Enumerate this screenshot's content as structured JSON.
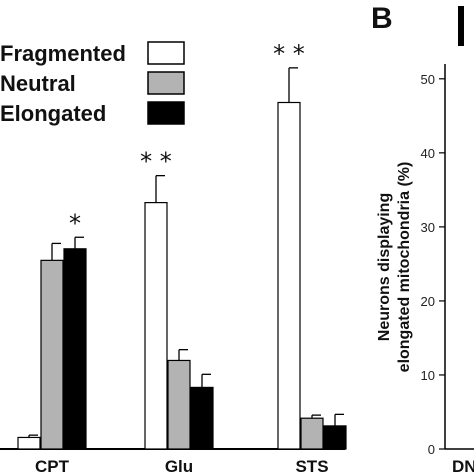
{
  "panel_b": {
    "label": "B",
    "next_category_partial": "DN"
  },
  "chart_data": [
    {
      "type": "bar",
      "categories": [
        "CPT",
        "Glu",
        "STS"
      ],
      "series": [
        {
          "name": "Fragmented",
          "color": "#ffffff",
          "values": [
            1.5,
            32,
            45
          ],
          "errors": [
            0.3,
            3.5,
            4.5
          ]
        },
        {
          "name": "Neutral",
          "color": "#b3b3b3",
          "values": [
            24.5,
            11.5,
            4
          ],
          "errors": [
            2.2,
            1.4,
            0.4
          ]
        },
        {
          "name": "Elongated",
          "color": "#000000",
          "values": [
            26,
            8,
            3
          ],
          "errors": [
            1.5,
            1.7,
            1.5
          ]
        }
      ],
      "significance": [
        {
          "category": "CPT",
          "series": "Elongated",
          "marker": "*"
        },
        {
          "category": "Glu",
          "series": "Fragmented",
          "marker": "**"
        },
        {
          "category": "STS",
          "series": "Fragmented",
          "marker": "**"
        }
      ],
      "ylim": [
        0,
        50
      ],
      "legend_position": "top-left"
    },
    {
      "type": "bar",
      "ylabel_lines": [
        "Neurons displaying",
        "elongated mitochondria (%)"
      ],
      "yticks": [
        "0",
        "10",
        "20",
        "30",
        "40",
        "50"
      ],
      "ylim": [
        0,
        52
      ]
    }
  ]
}
